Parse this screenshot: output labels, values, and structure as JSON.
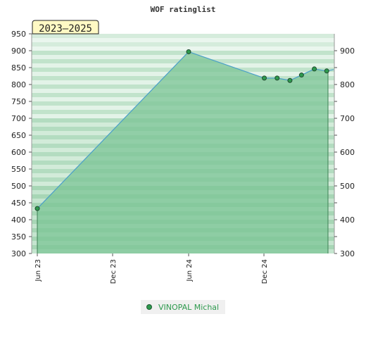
{
  "chart_data": {
    "type": "area",
    "title": "WOF ratinglist",
    "badge": "2023–2025",
    "x_tick_labels": [
      "Jun 23",
      "Dec 23",
      "Jun 24",
      "Dec 24"
    ],
    "y_ticks_left": [
      300,
      350,
      400,
      450,
      500,
      550,
      600,
      650,
      700,
      750,
      800,
      850,
      900,
      950
    ],
    "y_ticks_right": [
      300,
      400,
      500,
      600,
      700,
      800,
      900
    ],
    "ylim": [
      300,
      950
    ],
    "series": [
      {
        "name": "VINOPAL Michal",
        "x": [
          "2023-06-01",
          "2024-06-01",
          "2024-12-01",
          "2025-01-01",
          "2025-02-01",
          "2025-03-01",
          "2025-04-01",
          "2025-05-01"
        ],
        "y": [
          433,
          897,
          819,
          819,
          812,
          828,
          846,
          840
        ]
      }
    ],
    "legend_position": "bottom-center",
    "colors": {
      "line": "#4a9fc8",
      "marker": "#2e9a4e",
      "band_dark": "#7bc496",
      "band_mid": "#a9d9b8",
      "band_light": "#e6f4ea",
      "badge_bg": "#fff9c4",
      "legend_text": "#2e9a4e"
    }
  }
}
